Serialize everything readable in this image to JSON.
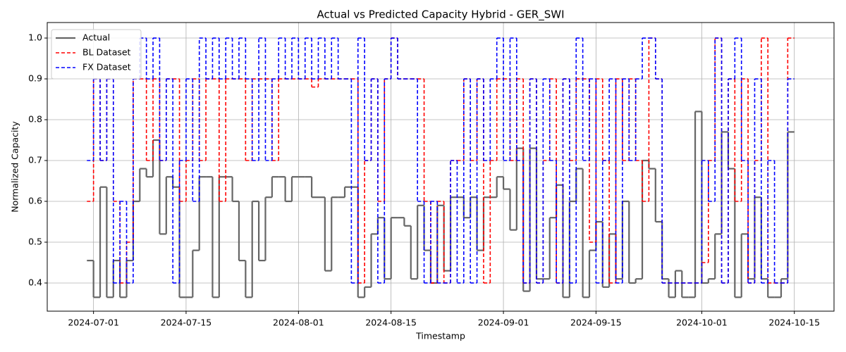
{
  "chart_data": {
    "type": "line",
    "step": true,
    "title": "Actual vs Predicted Capacity Hybrid - GER_SWI",
    "xlabel": "Timestamp",
    "ylabel": "Normalized Capacity",
    "legend": "upper left",
    "grid": true,
    "xlim": [
      "2024-06-24",
      "2024-10-21"
    ],
    "xticks": [
      "2024-07-01",
      "2024-07-15",
      "2024-08-01",
      "2024-08-15",
      "2024-09-01",
      "2024-09-15",
      "2024-10-01",
      "2024-10-15"
    ],
    "ylim": [
      0.331,
      1.038
    ],
    "yticks": [
      0.4,
      0.5,
      0.6,
      0.7,
      0.8,
      0.9,
      {
        "value": 1,
        "label": "1.0"
      }
    ],
    "x": [
      "2024-06-30",
      "2024-07-01",
      "2024-07-02",
      "2024-07-03",
      "2024-07-04",
      "2024-07-05",
      "2024-07-06",
      "2024-07-07",
      "2024-07-08",
      "2024-07-09",
      "2024-07-10",
      "2024-07-11",
      "2024-07-12",
      "2024-07-13",
      "2024-07-14",
      "2024-07-15",
      "2024-07-16",
      "2024-07-17",
      "2024-07-18",
      "2024-07-19",
      "2024-07-20",
      "2024-07-21",
      "2024-07-22",
      "2024-07-23",
      "2024-07-24",
      "2024-07-25",
      "2024-07-26",
      "2024-07-27",
      "2024-07-28",
      "2024-07-29",
      "2024-07-30",
      "2024-07-31",
      "2024-08-01",
      "2024-08-02",
      "2024-08-03",
      "2024-08-04",
      "2024-08-05",
      "2024-08-06",
      "2024-08-07",
      "2024-08-08",
      "2024-08-09",
      "2024-08-10",
      "2024-08-11",
      "2024-08-12",
      "2024-08-13",
      "2024-08-14",
      "2024-08-15",
      "2024-08-16",
      "2024-08-17",
      "2024-08-18",
      "2024-08-19",
      "2024-08-20",
      "2024-08-21",
      "2024-08-22",
      "2024-08-23",
      "2024-08-24",
      "2024-08-25",
      "2024-08-26",
      "2024-08-27",
      "2024-08-28",
      "2024-08-29",
      "2024-08-30",
      "2024-08-31",
      "2024-09-01",
      "2024-09-02",
      "2024-09-03",
      "2024-09-04",
      "2024-09-05",
      "2024-09-06",
      "2024-09-07",
      "2024-09-08",
      "2024-09-09",
      "2024-09-10",
      "2024-09-11",
      "2024-09-12",
      "2024-09-13",
      "2024-09-14",
      "2024-09-15",
      "2024-09-16",
      "2024-09-17",
      "2024-09-18",
      "2024-09-19",
      "2024-09-20",
      "2024-09-21",
      "2024-09-22",
      "2024-09-23",
      "2024-09-24",
      "2024-09-25",
      "2024-09-26",
      "2024-09-27",
      "2024-09-28",
      "2024-09-29",
      "2024-09-30",
      "2024-10-01",
      "2024-10-02",
      "2024-10-03",
      "2024-10-04",
      "2024-10-05",
      "2024-10-06",
      "2024-10-07",
      "2024-10-08",
      "2024-10-09",
      "2024-10-10",
      "2024-10-11",
      "2024-10-12",
      "2024-10-13",
      "2024-10-14"
    ],
    "series": [
      {
        "name": "Actual",
        "color": "#666666",
        "dash": false,
        "width": 2.2,
        "values": [
          0.455,
          0.365,
          0.635,
          0.365,
          0.455,
          0.365,
          0.455,
          0.6,
          0.68,
          0.66,
          0.75,
          0.52,
          0.66,
          0.635,
          0.365,
          0.365,
          0.48,
          0.66,
          0.66,
          0.365,
          0.66,
          0.66,
          0.6,
          0.455,
          0.365,
          0.6,
          0.455,
          0.61,
          0.66,
          0.66,
          0.6,
          0.66,
          0.66,
          0.66,
          0.61,
          0.61,
          0.43,
          0.61,
          0.61,
          0.635,
          0.635,
          0.365,
          0.39,
          0.52,
          0.56,
          0.41,
          0.56,
          0.56,
          0.54,
          0.41,
          0.59,
          0.48,
          0.4,
          0.59,
          0.43,
          0.61,
          0.61,
          0.56,
          0.61,
          0.48,
          0.61,
          0.61,
          0.66,
          0.63,
          0.53,
          0.73,
          0.38,
          0.73,
          0.41,
          0.41,
          0.56,
          0.64,
          0.365,
          0.6,
          0.68,
          0.365,
          0.48,
          0.55,
          0.39,
          0.52,
          0.41,
          0.6,
          0.4,
          0.41,
          0.7,
          0.68,
          0.55,
          0.41,
          0.365,
          0.43,
          0.365,
          0.365,
          0.82,
          0.4,
          0.41,
          0.52,
          0.77,
          0.68,
          0.365,
          0.52,
          0.41,
          0.61,
          0.41,
          0.365,
          0.365,
          0.41,
          0.77
        ]
      },
      {
        "name": "BL Dataset",
        "color": "#ff0000",
        "dash": true,
        "width": 1.6,
        "values": [
          0.6,
          0.9,
          0.7,
          0.9,
          0.6,
          0.4,
          0.5,
          0.9,
          0.9,
          0.7,
          0.9,
          0.7,
          0.9,
          0.9,
          0.6,
          0.7,
          0.9,
          0.7,
          0.9,
          0.9,
          0.6,
          0.9,
          0.9,
          0.9,
          0.7,
          0.9,
          0.9,
          0.9,
          0.7,
          0.9,
          0.9,
          0.9,
          0.9,
          0.9,
          0.88,
          0.9,
          0.9,
          0.9,
          0.9,
          0.9,
          0.9,
          0.4,
          0.7,
          0.9,
          0.6,
          0.9,
          1.0,
          0.9,
          0.9,
          0.9,
          0.9,
          0.6,
          0.4,
          0.6,
          0.4,
          0.7,
          0.7,
          0.9,
          0.7,
          0.9,
          0.4,
          0.7,
          0.9,
          0.9,
          0.7,
          0.9,
          0.4,
          0.9,
          0.4,
          0.7,
          0.9,
          0.4,
          0.9,
          0.7,
          0.9,
          0.9,
          0.5,
          0.9,
          0.7,
          0.4,
          0.9,
          0.7,
          0.9,
          0.7,
          0.6,
          1.0,
          0.9,
          0.4,
          0.4,
          0.4,
          0.4,
          0.4,
          0.4,
          0.45,
          0.7,
          1.0,
          0.4,
          0.9,
          0.6,
          0.9,
          0.4,
          0.7,
          1.0,
          0.4,
          0.4,
          0.4,
          1.0
        ]
      },
      {
        "name": "FX Dataset",
        "color": "#0000ff",
        "dash": true,
        "width": 1.6,
        "values": [
          0.7,
          0.9,
          0.7,
          0.9,
          0.4,
          0.6,
          0.4,
          0.9,
          1.0,
          0.9,
          1.0,
          0.7,
          0.9,
          0.4,
          0.7,
          0.9,
          0.6,
          1.0,
          0.9,
          1.0,
          0.9,
          1.0,
          0.9,
          1.0,
          0.9,
          0.7,
          1.0,
          0.7,
          0.9,
          1.0,
          0.9,
          1.0,
          0.9,
          1.0,
          0.9,
          1.0,
          0.9,
          1.0,
          0.9,
          0.9,
          0.4,
          1.0,
          0.7,
          0.9,
          0.4,
          0.9,
          1.0,
          0.9,
          0.9,
          0.9,
          0.6,
          0.4,
          0.6,
          0.4,
          0.4,
          0.7,
          0.4,
          0.9,
          0.4,
          0.9,
          0.7,
          0.9,
          1.0,
          0.7,
          1.0,
          0.7,
          0.4,
          0.9,
          0.4,
          0.9,
          0.7,
          0.4,
          0.9,
          0.4,
          1.0,
          0.7,
          0.9,
          0.4,
          0.7,
          0.9,
          0.4,
          0.9,
          0.7,
          0.9,
          1.0,
          1.0,
          0.9,
          0.4,
          0.4,
          0.4,
          0.4,
          0.4,
          0.4,
          0.7,
          0.6,
          1.0,
          0.4,
          0.9,
          1.0,
          0.7,
          0.4,
          0.9,
          0.4,
          0.7,
          0.4,
          0.4,
          0.9
        ]
      }
    ]
  }
}
